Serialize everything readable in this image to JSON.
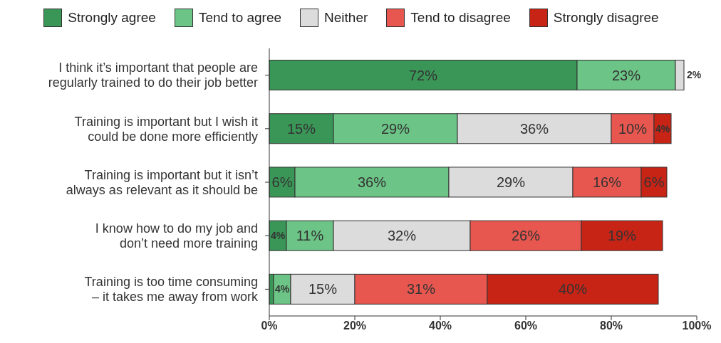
{
  "chart_data": {
    "type": "bar",
    "orientation": "horizontal",
    "stacked": true,
    "categories": [
      "I think it’s important that people are\nregularly trained to do their job better",
      "Training is important but I wish it\ncould be done more efficiently",
      "Training is important but it isn’t\nalways as relevant as it should be",
      "I know how to do my job and\ndon’t need more training",
      "Training is too time consuming\n– it takes me away from work"
    ],
    "series": [
      {
        "name": "Strongly agree",
        "color": "#3a9657",
        "values": [
          72,
          15,
          6,
          4,
          1
        ],
        "value_labels": [
          "72%",
          "15%",
          "6%",
          "4%",
          null
        ]
      },
      {
        "name": "Tend to agree",
        "color": "#6cc486",
        "values": [
          23,
          29,
          36,
          11,
          4
        ],
        "value_labels": [
          "23%",
          "29%",
          "36%",
          "11%",
          "4%"
        ]
      },
      {
        "name": "Neither",
        "color": "#dcdcdc",
        "values": [
          2,
          36,
          29,
          32,
          15
        ],
        "value_labels": [
          "2%",
          "36%",
          "29%",
          "32%",
          "15%"
        ]
      },
      {
        "name": "Tend to disagree",
        "color": "#e8574f",
        "values": [
          0,
          10,
          16,
          26,
          31
        ],
        "value_labels": [
          null,
          "10%",
          "16%",
          "26%",
          "31%"
        ]
      },
      {
        "name": "Strongly disagree",
        "color": "#c82416",
        "values": [
          0,
          4,
          6,
          19,
          40
        ],
        "value_labels": [
          null,
          "4%",
          "6%",
          "19%",
          "40%"
        ]
      }
    ],
    "xlim": [
      0,
      100
    ],
    "xticks": [
      {
        "value": 0,
        "label": "0%"
      },
      {
        "value": 20,
        "label": "20%"
      },
      {
        "value": 40,
        "label": "40%"
      },
      {
        "value": 60,
        "label": "60%"
      },
      {
        "value": 80,
        "label": "80%"
      },
      {
        "value": 100,
        "label": "100%"
      }
    ],
    "grid": false,
    "legend": "top"
  }
}
